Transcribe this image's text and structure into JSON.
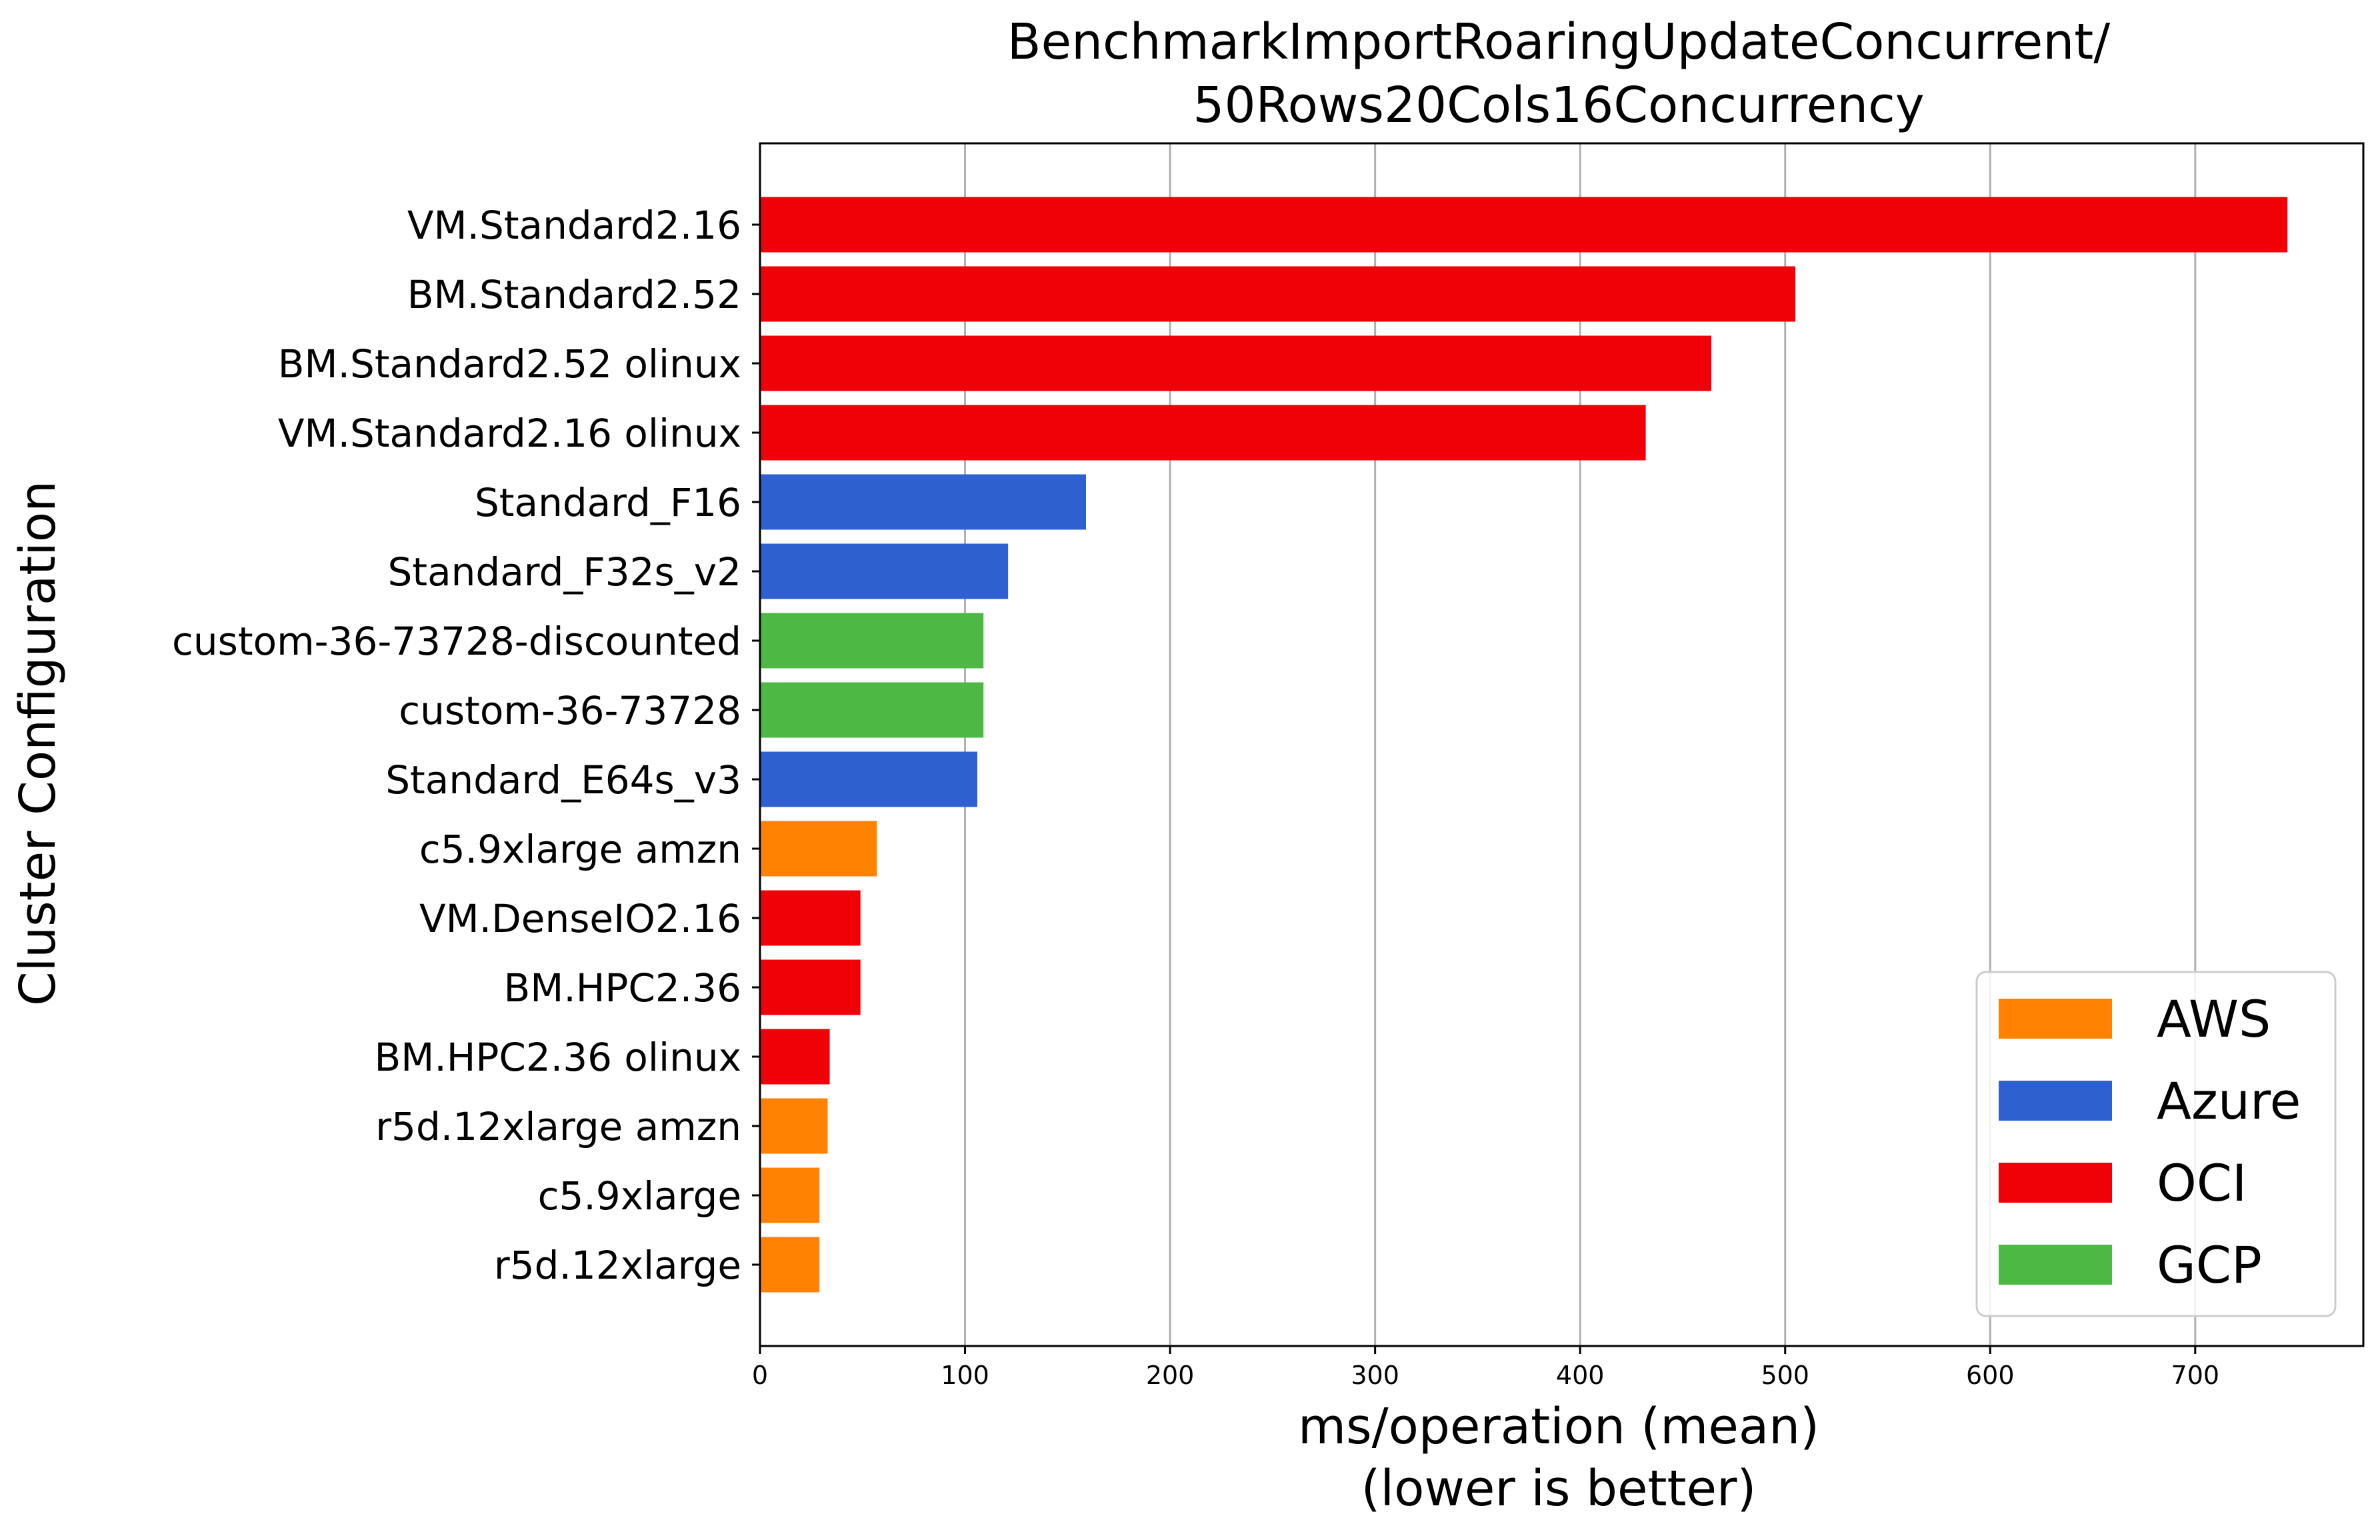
{
  "chart_data": {
    "type": "bar",
    "orientation": "horizontal",
    "title": "BenchmarkImportRoaringUpdateConcurrent/\n50Rows20Cols16Concurrency",
    "title_lines": [
      "BenchmarkImportRoaringUpdateConcurrent/",
      "50Rows20Cols16Concurrency"
    ],
    "xlabel": "ms/operation (mean)\n(lower is better)",
    "xlabel_lines": [
      "ms/operation (mean)",
      "(lower is better)"
    ],
    "ylabel": "Cluster Configuration",
    "xlim": [
      0,
      782
    ],
    "xticks": [
      0,
      100,
      200,
      300,
      400,
      500,
      600,
      700
    ],
    "xtick_labels": [
      "0",
      "100",
      "200",
      "300",
      "400",
      "500",
      "600",
      "700"
    ],
    "grid": "x",
    "legend_position": "bottom-right",
    "colors": {
      "AWS": "#ff8300",
      "Azure": "#2f60cf",
      "OCI": "#f00007",
      "GCP": "#4db844"
    },
    "legend": [
      "AWS",
      "Azure",
      "OCI",
      "GCP"
    ],
    "bars": [
      {
        "label": "VM.Standard2.16",
        "value": 745,
        "provider": "OCI"
      },
      {
        "label": "BM.Standard2.52",
        "value": 505,
        "provider": "OCI"
      },
      {
        "label": "BM.Standard2.52 olinux",
        "value": 464,
        "provider": "OCI"
      },
      {
        "label": "VM.Standard2.16 olinux",
        "value": 432,
        "provider": "OCI"
      },
      {
        "label": "Standard_F16",
        "value": 159,
        "provider": "Azure"
      },
      {
        "label": "Standard_F32s_v2",
        "value": 121,
        "provider": "Azure"
      },
      {
        "label": "custom-36-73728-discounted",
        "value": 109,
        "provider": "GCP"
      },
      {
        "label": "custom-36-73728",
        "value": 109,
        "provider": "GCP"
      },
      {
        "label": "Standard_E64s_v3",
        "value": 106,
        "provider": "Azure"
      },
      {
        "label": "c5.9xlarge amzn",
        "value": 57,
        "provider": "AWS"
      },
      {
        "label": "VM.DenseIO2.16",
        "value": 49,
        "provider": "OCI"
      },
      {
        "label": "BM.HPC2.36",
        "value": 49,
        "provider": "OCI"
      },
      {
        "label": "BM.HPC2.36 olinux",
        "value": 34,
        "provider": "OCI"
      },
      {
        "label": "r5d.12xlarge amzn",
        "value": 33,
        "provider": "AWS"
      },
      {
        "label": "c5.9xlarge",
        "value": 29,
        "provider": "AWS"
      },
      {
        "label": "r5d.12xlarge",
        "value": 29,
        "provider": "AWS"
      }
    ]
  }
}
